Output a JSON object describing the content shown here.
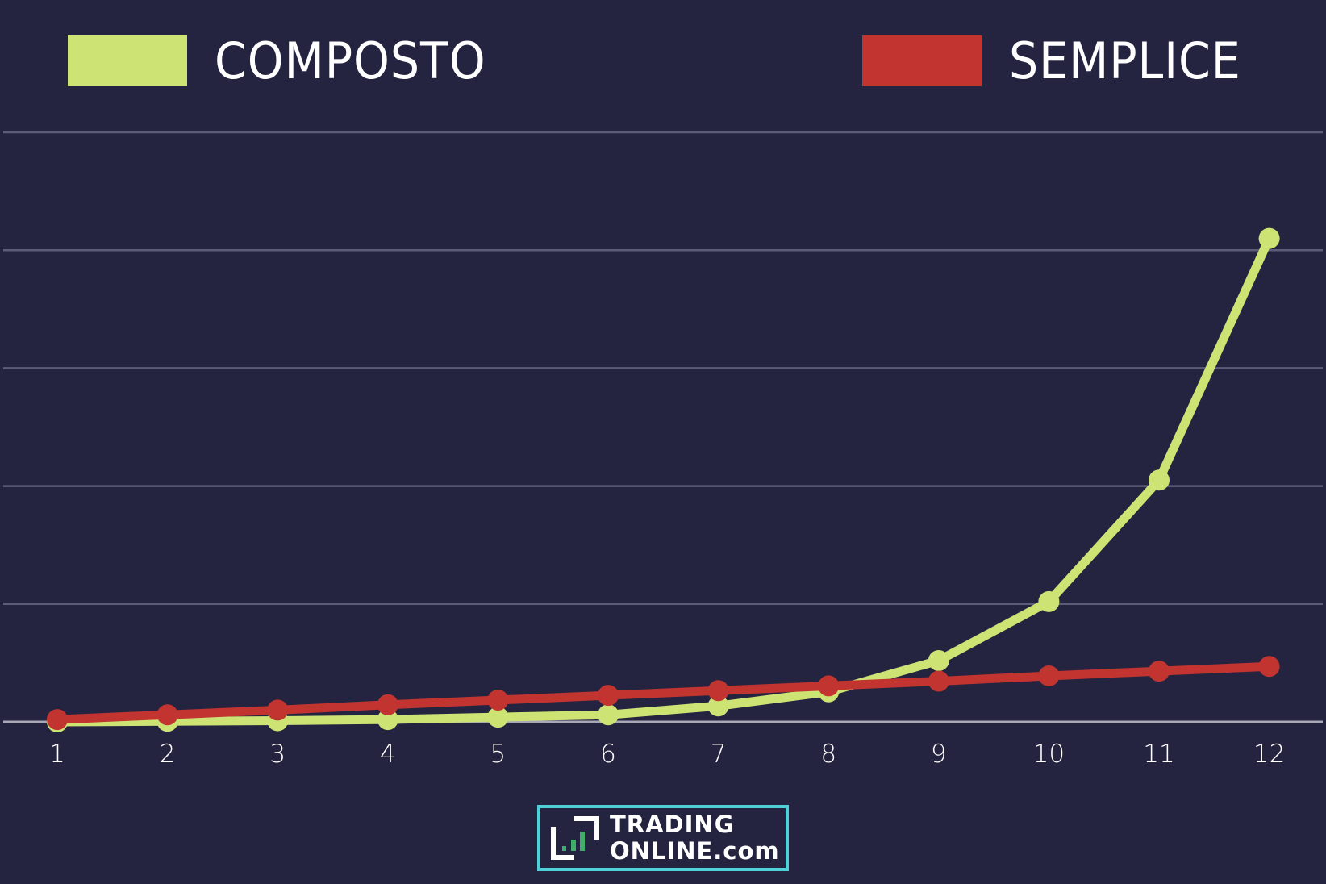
{
  "legend": {
    "items": [
      {
        "label": "COMPOSTO",
        "color": "#cde374"
      },
      {
        "label": "SEMPLICE",
        "color": "#c13430"
      }
    ]
  },
  "logo": {
    "line1": "TRADING",
    "line2": "ONLINE.com",
    "border_color": "#4fcfd8",
    "bar_color": "#3fae6a"
  },
  "colors": {
    "background": "#242440",
    "gridline": "#5c5c78",
    "baseline": "#a7a7b8",
    "tick_label": "#ffffff"
  },
  "chart_data": {
    "type": "line",
    "title": "",
    "xlabel": "",
    "ylabel": "",
    "x": [
      1,
      2,
      3,
      4,
      5,
      6,
      7,
      8,
      9,
      10,
      11,
      12
    ],
    "categories": [
      "1",
      "2",
      "3",
      "4",
      "5",
      "6",
      "7",
      "8",
      "9",
      "10",
      "11",
      "12"
    ],
    "series": [
      {
        "name": "COMPOSTO",
        "color": "#cde374",
        "values": [
          0,
          0.1,
          0.2,
          0.4,
          0.8,
          1.2,
          2.7,
          5.1,
          10.4,
          20.4,
          41,
          82
        ]
      },
      {
        "name": "SEMPLICE",
        "color": "#c13430",
        "values": [
          0.4,
          1.2,
          2.0,
          2.9,
          3.7,
          4.5,
          5.3,
          6.1,
          6.9,
          7.8,
          8.6,
          9.4
        ]
      }
    ],
    "ylim": [
      0,
      100
    ],
    "yticks_hidden": true,
    "grid": true,
    "gridlines": 5,
    "legend_position": "top",
    "markers": true
  }
}
